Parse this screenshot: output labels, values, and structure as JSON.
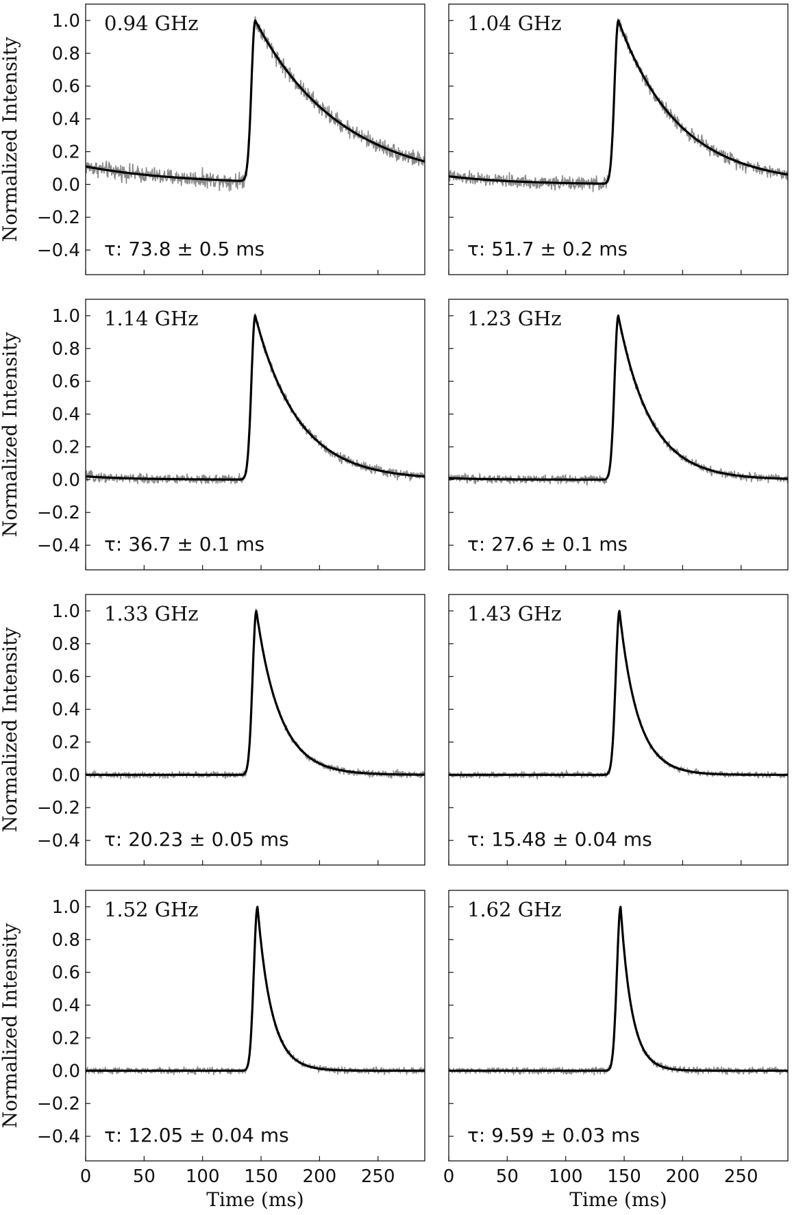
{
  "chart_data": [
    {
      "type": "line",
      "frequency_label": "0.94 GHz",
      "tau_label": "τ: 73.8 ± 0.5 ms",
      "tau_ms": 73.8,
      "peak_ms": 145,
      "baseline_start": 0.11,
      "noise": 0.025,
      "xlim": [
        0,
        290
      ],
      "ylim": [
        -0.55,
        1.1
      ],
      "xticks": [
        "0",
        "50",
        "100",
        "150",
        "200",
        "250"
      ],
      "yticks": [
        "−0.4",
        "−0.2",
        "0.0",
        "0.2",
        "0.4",
        "0.6",
        "0.8",
        "1.0"
      ],
      "ylabel": "Normalized Intensity",
      "xlabel": ""
    },
    {
      "type": "line",
      "frequency_label": "1.04 GHz",
      "tau_label": "τ: 51.7 ± 0.2 ms",
      "tau_ms": 51.7,
      "peak_ms": 145,
      "baseline_start": 0.05,
      "noise": 0.02,
      "xlim": [
        0,
        290
      ],
      "ylim": [
        -0.55,
        1.1
      ],
      "xticks": [
        "0",
        "50",
        "100",
        "150",
        "200",
        "250"
      ],
      "yticks": [
        "−0.4",
        "−0.2",
        "0.0",
        "0.2",
        "0.4",
        "0.6",
        "0.8",
        "1.0"
      ],
      "ylabel": "",
      "xlabel": ""
    },
    {
      "type": "line",
      "frequency_label": "1.14 GHz",
      "tau_label": "τ: 36.7 ± 0.1 ms",
      "tau_ms": 36.7,
      "peak_ms": 145,
      "baseline_start": 0.02,
      "noise": 0.015,
      "xlim": [
        0,
        290
      ],
      "ylim": [
        -0.55,
        1.1
      ],
      "xticks": [
        "0",
        "50",
        "100",
        "150",
        "200",
        "250"
      ],
      "yticks": [
        "−0.4",
        "−0.2",
        "0.0",
        "0.2",
        "0.4",
        "0.6",
        "0.8",
        "1.0"
      ],
      "ylabel": "Normalized Intensity",
      "xlabel": ""
    },
    {
      "type": "line",
      "frequency_label": "1.23 GHz",
      "tau_label": "τ: 27.6 ± 0.1 ms",
      "tau_ms": 27.6,
      "peak_ms": 145,
      "baseline_start": 0.01,
      "noise": 0.013,
      "xlim": [
        0,
        290
      ],
      "ylim": [
        -0.55,
        1.1
      ],
      "xticks": [
        "0",
        "50",
        "100",
        "150",
        "200",
        "250"
      ],
      "yticks": [
        "−0.4",
        "−0.2",
        "0.0",
        "0.2",
        "0.4",
        "0.6",
        "0.8",
        "1.0"
      ],
      "ylabel": "",
      "xlabel": ""
    },
    {
      "type": "line",
      "frequency_label": "1.33 GHz",
      "tau_label": "τ: 20.23 ± 0.05 ms",
      "tau_ms": 20.23,
      "peak_ms": 146,
      "baseline_start": 0.0,
      "noise": 0.01,
      "xlim": [
        0,
        290
      ],
      "ylim": [
        -0.55,
        1.1
      ],
      "xticks": [
        "0",
        "50",
        "100",
        "150",
        "200",
        "250"
      ],
      "yticks": [
        "−0.4",
        "−0.2",
        "0.0",
        "0.2",
        "0.4",
        "0.6",
        "0.8",
        "1.0"
      ],
      "ylabel": "Normalized Intensity",
      "xlabel": ""
    },
    {
      "type": "line",
      "frequency_label": "1.43 GHz",
      "tau_label": "τ: 15.48 ± 0.04 ms",
      "tau_ms": 15.48,
      "peak_ms": 146,
      "baseline_start": 0.0,
      "noise": 0.009,
      "xlim": [
        0,
        290
      ],
      "ylim": [
        -0.55,
        1.1
      ],
      "xticks": [
        "0",
        "50",
        "100",
        "150",
        "200",
        "250"
      ],
      "yticks": [
        "−0.4",
        "−0.2",
        "0.0",
        "0.2",
        "0.4",
        "0.6",
        "0.8",
        "1.0"
      ],
      "ylabel": "",
      "xlabel": ""
    },
    {
      "type": "line",
      "frequency_label": "1.52 GHz",
      "tau_label": "τ: 12.05 ± 0.04 ms",
      "tau_ms": 12.05,
      "peak_ms": 147,
      "baseline_start": 0.0,
      "noise": 0.01,
      "xlim": [
        0,
        290
      ],
      "ylim": [
        -0.55,
        1.1
      ],
      "xticks": [
        "0",
        "50",
        "100",
        "150",
        "200",
        "250"
      ],
      "yticks": [
        "−0.4",
        "−0.2",
        "0.0",
        "0.2",
        "0.4",
        "0.6",
        "0.8",
        "1.0"
      ],
      "ylabel": "Normalized Intensity",
      "xlabel": "Time (ms)"
    },
    {
      "type": "line",
      "frequency_label": "1.62 GHz",
      "tau_label": "τ: 9.59 ± 0.03 ms",
      "tau_ms": 9.59,
      "peak_ms": 147,
      "baseline_start": 0.0,
      "noise": 0.01,
      "xlim": [
        0,
        290
      ],
      "ylim": [
        -0.55,
        1.1
      ],
      "xticks": [
        "0",
        "50",
        "100",
        "150",
        "200",
        "250"
      ],
      "yticks": [
        "−0.4",
        "−0.2",
        "0.0",
        "0.2",
        "0.4",
        "0.6",
        "0.8",
        "1.0"
      ],
      "ylabel": "",
      "xlabel": "Time (ms)"
    }
  ]
}
